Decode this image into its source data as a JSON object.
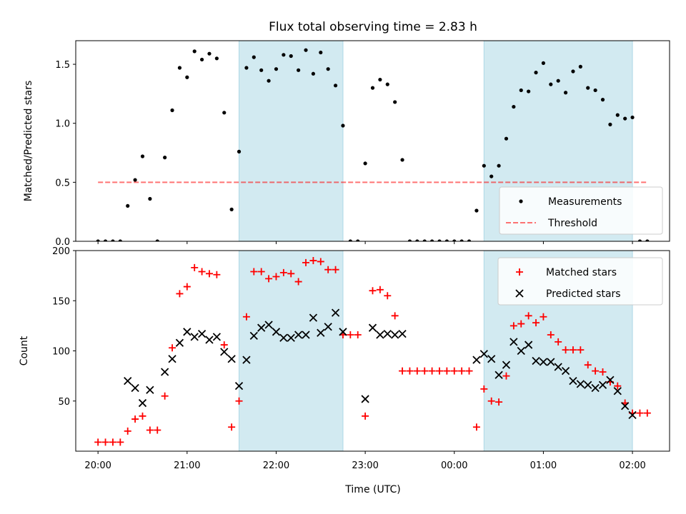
{
  "chart_data": {
    "type": "scatter",
    "title": "Flux total observing time = 2.83 h",
    "xlabel": "Time (UTC)",
    "x_unit": "time of day (UTC), HH:MM",
    "xlim": [
      "19:45",
      "02:25"
    ],
    "xtick_labels": [
      "20:00",
      "21:00",
      "22:00",
      "23:00",
      "00:00",
      "01:00",
      "02:00"
    ],
    "shaded_intervals": [
      {
        "start": "21:35",
        "end": "22:45"
      },
      {
        "start": "00:20",
        "end": "02:00"
      }
    ],
    "colors": {
      "shade": "#add8e6",
      "measurements": "#000000",
      "threshold": "#ff0000",
      "matched": "#ff0000",
      "predicted": "#000000"
    },
    "panels": [
      {
        "ylabel": "Matched/Predicted stars",
        "ylim": [
          0,
          1.7
        ],
        "yticks": [
          0.0,
          0.5,
          1.0,
          1.5
        ],
        "ytick_labels": [
          "0.0",
          "0.5",
          "1.0",
          "1.5"
        ],
        "legend_position": "lower right",
        "series": [
          {
            "name": "Measurements",
            "kind": "points",
            "color": "#000000",
            "points": [
              [
                "20:00",
                0
              ],
              [
                "20:05",
                0
              ],
              [
                "20:10",
                0
              ],
              [
                "20:15",
                0
              ],
              [
                "20:20",
                0.3
              ],
              [
                "20:25",
                0.52
              ],
              [
                "20:30",
                0.72
              ],
              [
                "20:35",
                0.36
              ],
              [
                "20:40",
                0
              ],
              [
                "20:45",
                0.71
              ],
              [
                "20:50",
                1.11
              ],
              [
                "20:55",
                1.47
              ],
              [
                "21:00",
                1.39
              ],
              [
                "21:05",
                1.61
              ],
              [
                "21:10",
                1.54
              ],
              [
                "21:15",
                1.59
              ],
              [
                "21:20",
                1.55
              ],
              [
                "21:25",
                1.09
              ],
              [
                "21:30",
                0.27
              ],
              [
                "21:35",
                0.76
              ],
              [
                "21:40",
                1.47
              ],
              [
                "21:45",
                1.56
              ],
              [
                "21:50",
                1.45
              ],
              [
                "21:55",
                1.36
              ],
              [
                "22:00",
                1.46
              ],
              [
                "22:05",
                1.58
              ],
              [
                "22:10",
                1.57
              ],
              [
                "22:15",
                1.45
              ],
              [
                "22:20",
                1.62
              ],
              [
                "22:25",
                1.42
              ],
              [
                "22:30",
                1.6
              ],
              [
                "22:35",
                1.46
              ],
              [
                "22:40",
                1.32
              ],
              [
                "22:45",
                0.98
              ],
              [
                "22:50",
                0
              ],
              [
                "22:55",
                0
              ],
              [
                "23:00",
                0.66
              ],
              [
                "23:05",
                1.3
              ],
              [
                "23:10",
                1.37
              ],
              [
                "23:15",
                1.33
              ],
              [
                "23:20",
                1.18
              ],
              [
                "23:25",
                0.69
              ],
              [
                "23:30",
                0
              ],
              [
                "23:35",
                0
              ],
              [
                "23:40",
                0
              ],
              [
                "23:45",
                0
              ],
              [
                "23:50",
                0
              ],
              [
                "23:55",
                0
              ],
              [
                "00:00",
                0
              ],
              [
                "00:05",
                0
              ],
              [
                "00:10",
                0
              ],
              [
                "00:15",
                0.26
              ],
              [
                "00:20",
                0.64
              ],
              [
                "00:25",
                0.55
              ],
              [
                "00:30",
                0.64
              ],
              [
                "00:35",
                0.87
              ],
              [
                "00:40",
                1.14
              ],
              [
                "00:45",
                1.28
              ],
              [
                "00:50",
                1.27
              ],
              [
                "00:55",
                1.43
              ],
              [
                "01:00",
                1.51
              ],
              [
                "01:05",
                1.33
              ],
              [
                "01:10",
                1.36
              ],
              [
                "01:15",
                1.26
              ],
              [
                "01:20",
                1.44
              ],
              [
                "01:25",
                1.48
              ],
              [
                "01:30",
                1.3
              ],
              [
                "01:35",
                1.28
              ],
              [
                "01:40",
                1.2
              ],
              [
                "01:45",
                0.99
              ],
              [
                "01:50",
                1.07
              ],
              [
                "01:55",
                1.04
              ],
              [
                "02:00",
                1.05
              ],
              [
                "02:05",
                0
              ],
              [
                "02:10",
                0
              ]
            ]
          },
          {
            "name": "Threshold",
            "kind": "dashed-line",
            "color": "#ff0000",
            "points": [
              [
                "20:00",
                0.5
              ],
              [
                "02:10",
                0.5
              ]
            ]
          }
        ]
      },
      {
        "ylabel": "Count",
        "ylim": [
          0,
          200
        ],
        "yticks": [
          50,
          100,
          150,
          200
        ],
        "ytick_labels": [
          "50",
          "100",
          "150",
          "200"
        ],
        "legend_position": "upper right",
        "series": [
          {
            "name": "Matched stars",
            "kind": "plus",
            "color": "#ff0000",
            "points": [
              [
                "20:00",
                9
              ],
              [
                "20:05",
                9
              ],
              [
                "20:10",
                9
              ],
              [
                "20:15",
                9
              ],
              [
                "20:20",
                20
              ],
              [
                "20:25",
                32
              ],
              [
                "20:30",
                35
              ],
              [
                "20:35",
                21
              ],
              [
                "20:40",
                21
              ],
              [
                "20:45",
                55
              ],
              [
                "20:50",
                103
              ],
              [
                "20:55",
                157
              ],
              [
                "21:00",
                164
              ],
              [
                "21:05",
                183
              ],
              [
                "21:10",
                179
              ],
              [
                "21:15",
                177
              ],
              [
                "21:20",
                176
              ],
              [
                "21:25",
                106
              ],
              [
                "21:30",
                24
              ],
              [
                "21:35",
                50
              ],
              [
                "21:40",
                134
              ],
              [
                "21:45",
                179
              ],
              [
                "21:50",
                179
              ],
              [
                "21:55",
                172
              ],
              [
                "22:00",
                174
              ],
              [
                "22:05",
                178
              ],
              [
                "22:10",
                177
              ],
              [
                "22:15",
                169
              ],
              [
                "22:20",
                188
              ],
              [
                "22:25",
                190
              ],
              [
                "22:30",
                189
              ],
              [
                "22:35",
                181
              ],
              [
                "22:40",
                181
              ],
              [
                "22:45",
                116
              ],
              [
                "22:50",
                116
              ],
              [
                "22:55",
                116
              ],
              [
                "23:00",
                35
              ],
              [
                "23:05",
                160
              ],
              [
                "23:10",
                161
              ],
              [
                "23:15",
                155
              ],
              [
                "23:20",
                135
              ],
              [
                "23:25",
                80
              ],
              [
                "23:30",
                80
              ],
              [
                "23:35",
                80
              ],
              [
                "23:40",
                80
              ],
              [
                "23:45",
                80
              ],
              [
                "23:50",
                80
              ],
              [
                "23:55",
                80
              ],
              [
                "00:00",
                80
              ],
              [
                "00:05",
                80
              ],
              [
                "00:10",
                80
              ],
              [
                "00:15",
                24
              ],
              [
                "00:20",
                62
              ],
              [
                "00:25",
                50
              ],
              [
                "00:30",
                49
              ],
              [
                "00:35",
                75
              ],
              [
                "00:40",
                125
              ],
              [
                "00:45",
                127
              ],
              [
                "00:50",
                135
              ],
              [
                "00:55",
                128
              ],
              [
                "01:00",
                134
              ],
              [
                "01:05",
                116
              ],
              [
                "01:10",
                109
              ],
              [
                "01:15",
                101
              ],
              [
                "01:20",
                101
              ],
              [
                "01:25",
                101
              ],
              [
                "01:30",
                86
              ],
              [
                "01:35",
                80
              ],
              [
                "01:40",
                79
              ],
              [
                "01:45",
                69
              ],
              [
                "01:50",
                65
              ],
              [
                "01:55",
                48
              ],
              [
                "02:00",
                38
              ],
              [
                "02:05",
                38
              ],
              [
                "02:10",
                38
              ]
            ]
          },
          {
            "name": "Predicted stars",
            "kind": "cross",
            "color": "#000000",
            "points": [
              [
                "20:20",
                70
              ],
              [
                "20:25",
                63
              ],
              [
                "20:30",
                48
              ],
              [
                "20:35",
                61
              ],
              [
                "20:45",
                79
              ],
              [
                "20:50",
                92
              ],
              [
                "20:55",
                108
              ],
              [
                "21:00",
                119
              ],
              [
                "21:05",
                114
              ],
              [
                "21:10",
                117
              ],
              [
                "21:15",
                111
              ],
              [
                "21:20",
                114
              ],
              [
                "21:25",
                99
              ],
              [
                "21:30",
                92
              ],
              [
                "21:35",
                65
              ],
              [
                "21:40",
                91
              ],
              [
                "21:45",
                115
              ],
              [
                "21:50",
                123
              ],
              [
                "21:55",
                126
              ],
              [
                "22:00",
                119
              ],
              [
                "22:05",
                113
              ],
              [
                "22:10",
                113
              ],
              [
                "22:15",
                116
              ],
              [
                "22:20",
                116
              ],
              [
                "22:25",
                133
              ],
              [
                "22:30",
                118
              ],
              [
                "22:35",
                124
              ],
              [
                "22:40",
                138
              ],
              [
                "22:45",
                119
              ],
              [
                "23:00",
                52
              ],
              [
                "23:05",
                123
              ],
              [
                "23:10",
                116
              ],
              [
                "23:15",
                117
              ],
              [
                "23:20",
                116
              ],
              [
                "23:25",
                117
              ],
              [
                "00:15",
                91
              ],
              [
                "00:20",
                97
              ],
              [
                "00:25",
                92
              ],
              [
                "00:30",
                76
              ],
              [
                "00:35",
                86
              ],
              [
                "00:40",
                109
              ],
              [
                "00:45",
                100
              ],
              [
                "00:50",
                106
              ],
              [
                "00:55",
                90
              ],
              [
                "01:00",
                89
              ],
              [
                "01:05",
                89
              ],
              [
                "01:10",
                84
              ],
              [
                "01:15",
                80
              ],
              [
                "01:20",
                70
              ],
              [
                "01:25",
                67
              ],
              [
                "01:30",
                66
              ],
              [
                "01:35",
                63
              ],
              [
                "01:40",
                66
              ],
              [
                "01:45",
                71
              ],
              [
                "01:50",
                60
              ],
              [
                "01:55",
                45
              ],
              [
                "02:00",
                36
              ]
            ]
          }
        ]
      }
    ]
  }
}
